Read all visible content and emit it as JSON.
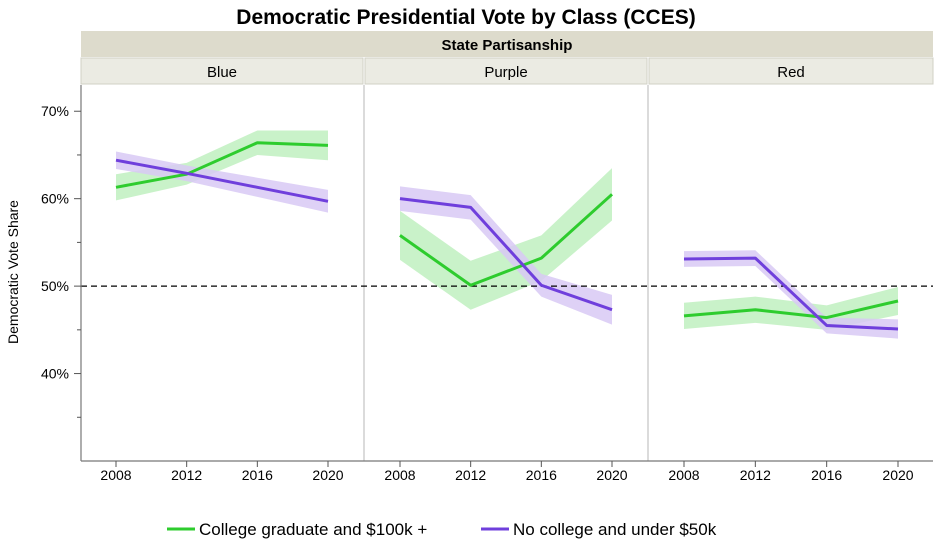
{
  "chart_data": {
    "type": "line",
    "title": "Democratic Presidential Vote by Class (CCES)",
    "facet_title": "State Partisanship",
    "ylabel": "Democratic Vote Share",
    "xlabel": "",
    "ylim": [
      30,
      73
    ],
    "yticks": [
      40,
      50,
      60,
      70
    ],
    "ytick_labels": [
      "40%",
      "50%",
      "60%",
      "70%"
    ],
    "x": [
      2008,
      2012,
      2016,
      2020
    ],
    "x_labels": [
      "2008",
      "2012",
      "2016",
      "2020"
    ],
    "reference_line": 50,
    "panels": [
      {
        "name": "Blue",
        "series": [
          {
            "name": "College graduate and $100k +",
            "values": [
              61.3,
              62.8,
              66.4,
              66.1
            ],
            "lower": [
              59.8,
              61.6,
              65.0,
              64.4
            ],
            "upper": [
              62.8,
              64.1,
              67.8,
              67.8
            ]
          },
          {
            "name": "No college and under $50k",
            "values": [
              64.4,
              62.9,
              61.3,
              59.7
            ],
            "lower": [
              63.4,
              62.0,
              60.2,
              58.4
            ],
            "upper": [
              65.4,
              63.8,
              62.4,
              61.0
            ]
          }
        ]
      },
      {
        "name": "Purple",
        "series": [
          {
            "name": "College graduate and $100k +",
            "values": [
              55.8,
              50.1,
              53.2,
              60.5
            ],
            "lower": [
              53.0,
              47.3,
              50.6,
              57.5
            ],
            "upper": [
              58.6,
              52.9,
              55.8,
              63.5
            ]
          },
          {
            "name": "No college and under $50k",
            "values": [
              60.0,
              59.0,
              50.1,
              47.3
            ],
            "lower": [
              58.6,
              57.6,
              48.8,
              45.6
            ],
            "upper": [
              61.4,
              60.4,
              51.4,
              49.0
            ]
          }
        ]
      },
      {
        "name": "Red",
        "series": [
          {
            "name": "College graduate and $100k +",
            "values": [
              46.6,
              47.3,
              46.4,
              48.3
            ],
            "lower": [
              45.1,
              45.8,
              45.0,
              46.7
            ],
            "upper": [
              48.1,
              48.8,
              47.8,
              49.9
            ]
          },
          {
            "name": "No college and under $50k",
            "values": [
              53.1,
              53.2,
              45.5,
              45.1
            ],
            "lower": [
              52.2,
              52.3,
              44.6,
              44.0
            ],
            "upper": [
              54.0,
              54.1,
              46.4,
              46.2
            ]
          }
        ]
      }
    ],
    "colors": {
      "College graduate and $100k +": "#2ecc2e",
      "No college and under $50k": "#6f3fdc",
      "band_green": "#bff0bf",
      "band_purple": "#d8c9f5",
      "strip_dark": "#dddbcc",
      "strip_light": "#ebebe3"
    },
    "legend": [
      "College graduate and $100k +",
      "No college and under $50k"
    ],
    "legend_position": "bottom",
    "grid": false
  }
}
